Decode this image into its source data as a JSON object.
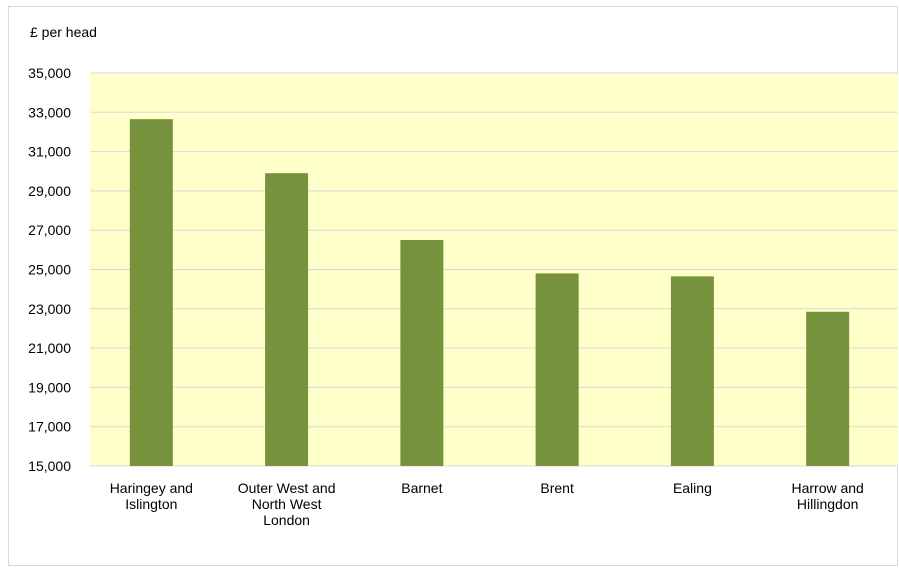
{
  "chart_data": {
    "type": "bar",
    "ylabel": "£ per head",
    "categories": [
      [
        "Haringey and",
        "Islington"
      ],
      [
        "Outer West and",
        "North West",
        "London"
      ],
      [
        "Barnet"
      ],
      [
        "Brent"
      ],
      [
        "Ealing"
      ],
      [
        "Harrow and",
        "Hillingdon"
      ]
    ],
    "values": [
      32650,
      29900,
      26500,
      24800,
      24650,
      22850
    ],
    "ylim": [
      15000,
      35000
    ],
    "yticks": [
      "15,000",
      "17,000",
      "19,000",
      "21,000",
      "23,000",
      "25,000",
      "27,000",
      "29,000",
      "31,000",
      "33,000",
      "35,000"
    ],
    "grid": true,
    "colors": {
      "bar": "#76923c",
      "plot_bg": "#ffffc9",
      "grid": "#d9d9d9"
    }
  }
}
